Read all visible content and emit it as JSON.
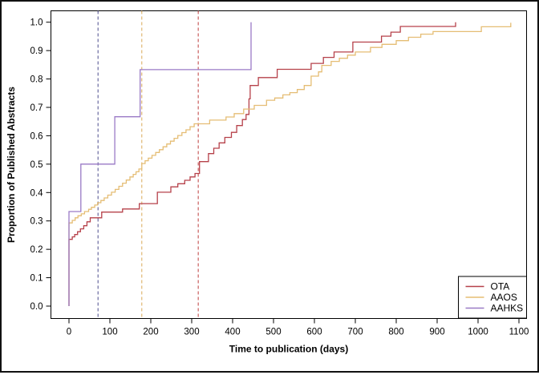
{
  "chart_data": {
    "type": "line",
    "subtype": "step-cumulative-incidence",
    "title": "",
    "xlabel": "Time to publication (days)",
    "ylabel": "Proportion of Published Abstracts",
    "xlim": [
      0,
      1100
    ],
    "ylim": [
      0.0,
      1.0
    ],
    "grid": false,
    "legend_position": "bottom-right",
    "x_ticks": [
      0,
      100,
      200,
      300,
      400,
      500,
      600,
      700,
      800,
      900,
      1000,
      1100
    ],
    "x_tick_labels": [
      "0",
      "100",
      "200",
      "300",
      "400",
      "500",
      "600",
      "700",
      "800",
      "900",
      "1000",
      "1100"
    ],
    "y_ticks": [
      0.0,
      0.1,
      0.2,
      0.3,
      0.4,
      0.5,
      0.6,
      0.7,
      0.8,
      0.9,
      1.0
    ],
    "y_tick_labels": [
      "0.0",
      "0.1",
      "0.2",
      "0.3",
      "0.4",
      "0.5",
      "0.6",
      "0.7",
      "0.8",
      "0.9",
      "1.0"
    ],
    "axis_color": "#000000",
    "series": [
      {
        "name": "OTA",
        "color": "#b6414a",
        "points": [
          [
            0,
            0.235
          ],
          [
            8,
            0.244
          ],
          [
            14,
            0.252
          ],
          [
            21,
            0.262
          ],
          [
            28,
            0.272
          ],
          [
            36,
            0.283
          ],
          [
            44,
            0.297
          ],
          [
            52,
            0.311
          ],
          [
            80,
            0.331
          ],
          [
            131,
            0.342
          ],
          [
            172,
            0.361
          ],
          [
            216,
            0.401
          ],
          [
            249,
            0.42
          ],
          [
            266,
            0.431
          ],
          [
            283,
            0.443
          ],
          [
            296,
            0.455
          ],
          [
            308,
            0.467
          ],
          [
            319,
            0.509
          ],
          [
            341,
            0.537
          ],
          [
            354,
            0.556
          ],
          [
            367,
            0.575
          ],
          [
            381,
            0.594
          ],
          [
            397,
            0.612
          ],
          [
            410,
            0.636
          ],
          [
            424,
            0.657
          ],
          [
            433,
            0.675
          ],
          [
            440,
            0.73
          ],
          [
            443,
            0.777
          ],
          [
            463,
            0.805
          ],
          [
            509,
            0.834
          ],
          [
            592,
            0.855
          ],
          [
            622,
            0.876
          ],
          [
            648,
            0.895
          ],
          [
            694,
            0.93
          ],
          [
            764,
            0.951
          ],
          [
            787,
            0.965
          ],
          [
            810,
            0.985
          ]
        ],
        "tail_day": 945,
        "end_tick_to": 1.0
      },
      {
        "name": "AAOS",
        "color": "#e5bd74",
        "points": [
          [
            0,
            0.293
          ],
          [
            8,
            0.302
          ],
          [
            15,
            0.311
          ],
          [
            22,
            0.318
          ],
          [
            30,
            0.325
          ],
          [
            38,
            0.333
          ],
          [
            48,
            0.341
          ],
          [
            55,
            0.348
          ],
          [
            63,
            0.356
          ],
          [
            70,
            0.364
          ],
          [
            78,
            0.372
          ],
          [
            86,
            0.381
          ],
          [
            95,
            0.391
          ],
          [
            104,
            0.401
          ],
          [
            113,
            0.411
          ],
          [
            122,
            0.422
          ],
          [
            131,
            0.433
          ],
          [
            140,
            0.444
          ],
          [
            149,
            0.455
          ],
          [
            157,
            0.464
          ],
          [
            164,
            0.473
          ],
          [
            171,
            0.483
          ],
          [
            178,
            0.502
          ],
          [
            186,
            0.512
          ],
          [
            194,
            0.521
          ],
          [
            203,
            0.531
          ],
          [
            212,
            0.541
          ],
          [
            221,
            0.551
          ],
          [
            230,
            0.561
          ],
          [
            239,
            0.571
          ],
          [
            248,
            0.581
          ],
          [
            257,
            0.591
          ],
          [
            266,
            0.601
          ],
          [
            276,
            0.611
          ],
          [
            286,
            0.621
          ],
          [
            296,
            0.632
          ],
          [
            306,
            0.642
          ],
          [
            344,
            0.655
          ],
          [
            384,
            0.666
          ],
          [
            404,
            0.678
          ],
          [
            427,
            0.694
          ],
          [
            453,
            0.707
          ],
          [
            483,
            0.725
          ],
          [
            503,
            0.733
          ],
          [
            523,
            0.744
          ],
          [
            540,
            0.752
          ],
          [
            558,
            0.763
          ],
          [
            575,
            0.777
          ],
          [
            592,
            0.81
          ],
          [
            610,
            0.825
          ],
          [
            618,
            0.848
          ],
          [
            641,
            0.862
          ],
          [
            661,
            0.873
          ],
          [
            681,
            0.884
          ],
          [
            700,
            0.895
          ],
          [
            737,
            0.911
          ],
          [
            765,
            0.922
          ],
          [
            800,
            0.935
          ],
          [
            830,
            0.947
          ],
          [
            860,
            0.958
          ],
          [
            890,
            0.967
          ],
          [
            1008,
            0.984
          ]
        ],
        "tail_day": 1080,
        "end_tick_to": 0.998
      },
      {
        "name": "AAHKS",
        "color": "#9a7ac6",
        "points": [
          [
            0,
            0.333
          ],
          [
            29,
            0.5
          ],
          [
            112,
            0.667
          ],
          [
            174,
            0.833
          ],
          [
            445,
            1.0
          ]
        ],
        "tail_day": null,
        "end_tick_to": null
      }
    ],
    "vlines": [
      {
        "x": 71,
        "style": "dashed",
        "color": "#5c5c97"
      },
      {
        "x": 178,
        "style": "dashed",
        "color": "#ddb166"
      },
      {
        "x": 316,
        "style": "dashed",
        "color": "#c4504f"
      }
    ],
    "legend": {
      "entries": [
        "OTA",
        "AAOS",
        "AAHKS"
      ]
    }
  }
}
